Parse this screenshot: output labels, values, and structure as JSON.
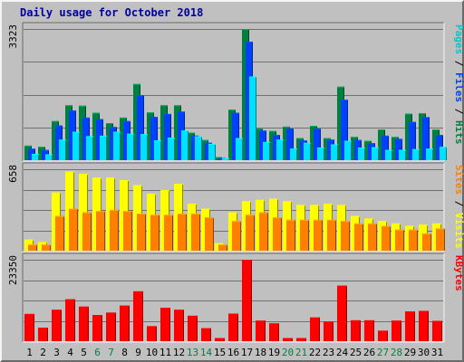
{
  "chart_data": {
    "type": "bar",
    "title": "Daily usage for October 2018",
    "categories": [
      "1",
      "2",
      "3",
      "4",
      "5",
      "6",
      "7",
      "8",
      "9",
      "10",
      "11",
      "12",
      "13",
      "14",
      "15",
      "16",
      "17",
      "18",
      "19",
      "20",
      "21",
      "22",
      "23",
      "24",
      "25",
      "26",
      "27",
      "28",
      "29",
      "30",
      "31"
    ],
    "weekend_days": [
      "6",
      "7",
      "13",
      "14",
      "20",
      "21",
      "27",
      "28"
    ],
    "panels": [
      {
        "name": "hits_files_pages",
        "ymax_label": "3323",
        "ylim": [
          0,
          3323
        ],
        "legend": [
          {
            "text": "Pages",
            "color": "#00c8c8"
          },
          {
            "text": " / ",
            "color": "#000000"
          },
          {
            "text": "Files",
            "color": "#0040ff"
          },
          {
            "text": " / ",
            "color": "#000000"
          },
          {
            "text": "Hits",
            "color": "#008040"
          }
        ],
        "series": [
          {
            "name": "Hits",
            "color": "#008040",
            "values": [
              370,
              340,
              990,
              1390,
              1380,
              1200,
              940,
              1080,
              1930,
              1210,
              1390,
              1390,
              700,
              510,
              80,
              1280,
              3323,
              800,
              740,
              850,
              560,
              870,
              560,
              1860,
              590,
              490,
              780,
              590,
              1180,
              1190,
              780
            ]
          },
          {
            "name": "Files",
            "color": "#0040ff",
            "values": [
              290,
              260,
              880,
              1260,
              1080,
              1040,
              840,
              990,
              1650,
              1100,
              1170,
              1230,
              620,
              440,
              60,
              1200,
              3000,
              750,
              640,
              800,
              500,
              800,
              520,
              1530,
              510,
              430,
              620,
              540,
              970,
              1090,
              640
            ]
          },
          {
            "name": "Pages",
            "color": "#00e0ff",
            "values": [
              160,
              150,
              520,
              720,
              610,
              620,
              720,
              670,
              660,
              500,
              570,
              750,
              600,
              410,
              50,
              560,
              2120,
              460,
              520,
              290,
              440,
              320,
              400,
              490,
              320,
              330,
              260,
              260,
              280,
              290,
              340
            ]
          }
        ]
      },
      {
        "name": "visits_sites",
        "ymax_label": "658",
        "ylim": [
          0,
          658
        ],
        "legend": [
          {
            "text": "Sites",
            "color": "#ff8000"
          },
          {
            "text": " / ",
            "color": "#000000"
          },
          {
            "text": "Visits",
            "color": "#ffff00"
          }
        ],
        "series": [
          {
            "name": "Visits",
            "color": "#ffff00",
            "values": [
              90,
              70,
              470,
              640,
              620,
              590,
              590,
              570,
              530,
              460,
              490,
              540,
              380,
              340,
              60,
              310,
              400,
              410,
              420,
              400,
              370,
              370,
              380,
              370,
              280,
              260,
              240,
              220,
              200,
              210,
              220
            ]
          },
          {
            "name": "Sites",
            "color": "#ff8000",
            "values": [
              50,
              50,
              280,
              340,
              310,
              320,
              330,
              320,
              300,
              290,
              290,
              300,
              300,
              270,
              50,
              240,
              290,
              310,
              270,
              250,
              250,
              250,
              250,
              240,
              220,
              220,
              200,
              170,
              170,
              140,
              180
            ]
          }
        ]
      },
      {
        "name": "kbytes",
        "ymax_label": "23350",
        "ylim": [
          0,
          23350
        ],
        "legend": [
          {
            "text": "KBytes",
            "color": "#ff0000"
          }
        ],
        "series": [
          {
            "name": "KBytes",
            "color": "#ff0000",
            "values": [
              7800,
              3900,
              9000,
              12000,
              9900,
              7500,
              8200,
              10200,
              14300,
              4300,
              9600,
              9000,
              7300,
              3700,
              900,
              7900,
              23350,
              5900,
              5100,
              900,
              900,
              6800,
              5600,
              15900,
              6000,
              6000,
              3000,
              5900,
              8500,
              8700,
              5800
            ]
          }
        ]
      }
    ]
  }
}
